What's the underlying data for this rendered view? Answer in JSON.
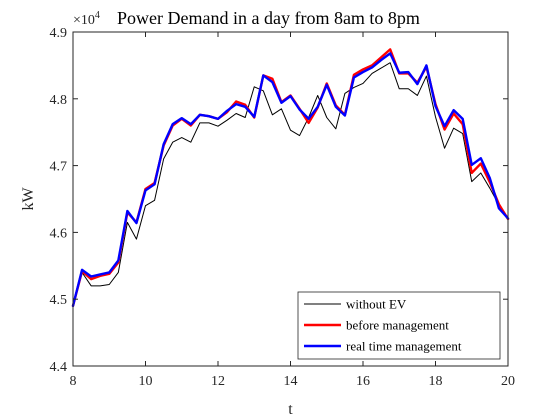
{
  "chart_data": {
    "type": "line",
    "title": "Power Demand in a day from 8am to 8pm",
    "xlabel": "t",
    "ylabel": "kW",
    "y_exponent": {
      "base": "×10",
      "power": "4"
    },
    "xlim": [
      8,
      20
    ],
    "ylim": [
      44000,
      49000
    ],
    "xticks": [
      8,
      10,
      12,
      14,
      16,
      18,
      20
    ],
    "yticks": [
      44000,
      45000,
      46000,
      47000,
      48000,
      49000
    ],
    "ytick_labels": [
      "4.4",
      "4.5",
      "4.6",
      "4.7",
      "4.8",
      "4.9"
    ],
    "grid": false,
    "legend_position": "bottom-right",
    "x": [
      8.0,
      8.25,
      8.5,
      8.75,
      9.0,
      9.25,
      9.5,
      9.75,
      10.0,
      10.25,
      10.5,
      10.75,
      11.0,
      11.25,
      11.5,
      11.75,
      12.0,
      12.25,
      12.5,
      12.75,
      13.0,
      13.25,
      13.5,
      13.75,
      14.0,
      14.25,
      14.5,
      14.75,
      15.0,
      15.25,
      15.5,
      15.75,
      16.0,
      16.25,
      16.5,
      16.75,
      17.0,
      17.25,
      17.5,
      17.75,
      18.0,
      18.25,
      18.5,
      18.75,
      19.0,
      19.25,
      19.5,
      19.75,
      20.0
    ],
    "series": [
      {
        "name": "without EV",
        "color": "#000000",
        "width": 1,
        "values": [
          44900,
          45400,
          45200,
          45200,
          45220,
          45400,
          46150,
          45900,
          46400,
          46480,
          47100,
          47350,
          47420,
          47350,
          47640,
          47640,
          47590,
          47680,
          47780,
          47720,
          48180,
          48120,
          47760,
          47850,
          47530,
          47450,
          47720,
          48050,
          47720,
          47550,
          48080,
          48170,
          48230,
          48380,
          48460,
          48540,
          48150,
          48150,
          48050,
          48340,
          47730,
          47260,
          47560,
          47480,
          46760,
          46890,
          46660,
          46410,
          46210
        ]
      },
      {
        "name": "before management",
        "color": "#ff0000",
        "width": 2.4,
        "values": [
          44900,
          45420,
          45300,
          45350,
          45380,
          45550,
          46300,
          46150,
          46650,
          46740,
          47300,
          47600,
          47700,
          47600,
          47760,
          47740,
          47700,
          47800,
          47960,
          47910,
          47720,
          48350,
          48300,
          47950,
          48050,
          47850,
          47640,
          47870,
          48230,
          47900,
          47760,
          48360,
          48440,
          48500,
          48620,
          48740,
          48380,
          48380,
          48240,
          48480,
          47920,
          47540,
          47780,
          47620,
          46890,
          47030,
          46750,
          46420,
          46200
        ]
      },
      {
        "name": "real time management",
        "color": "#0000ff",
        "width": 2.4,
        "values": [
          44900,
          45440,
          45340,
          45370,
          45400,
          45580,
          46320,
          46140,
          46630,
          46720,
          47320,
          47620,
          47710,
          47620,
          47760,
          47740,
          47700,
          47820,
          47920,
          47880,
          47730,
          48350,
          48250,
          47940,
          48040,
          47840,
          47700,
          47880,
          48210,
          47880,
          47750,
          48320,
          48400,
          48470,
          48580,
          48680,
          48390,
          48400,
          48220,
          48500,
          47890,
          47590,
          47830,
          47700,
          47010,
          47110,
          46810,
          46360,
          46210
        ]
      }
    ]
  }
}
